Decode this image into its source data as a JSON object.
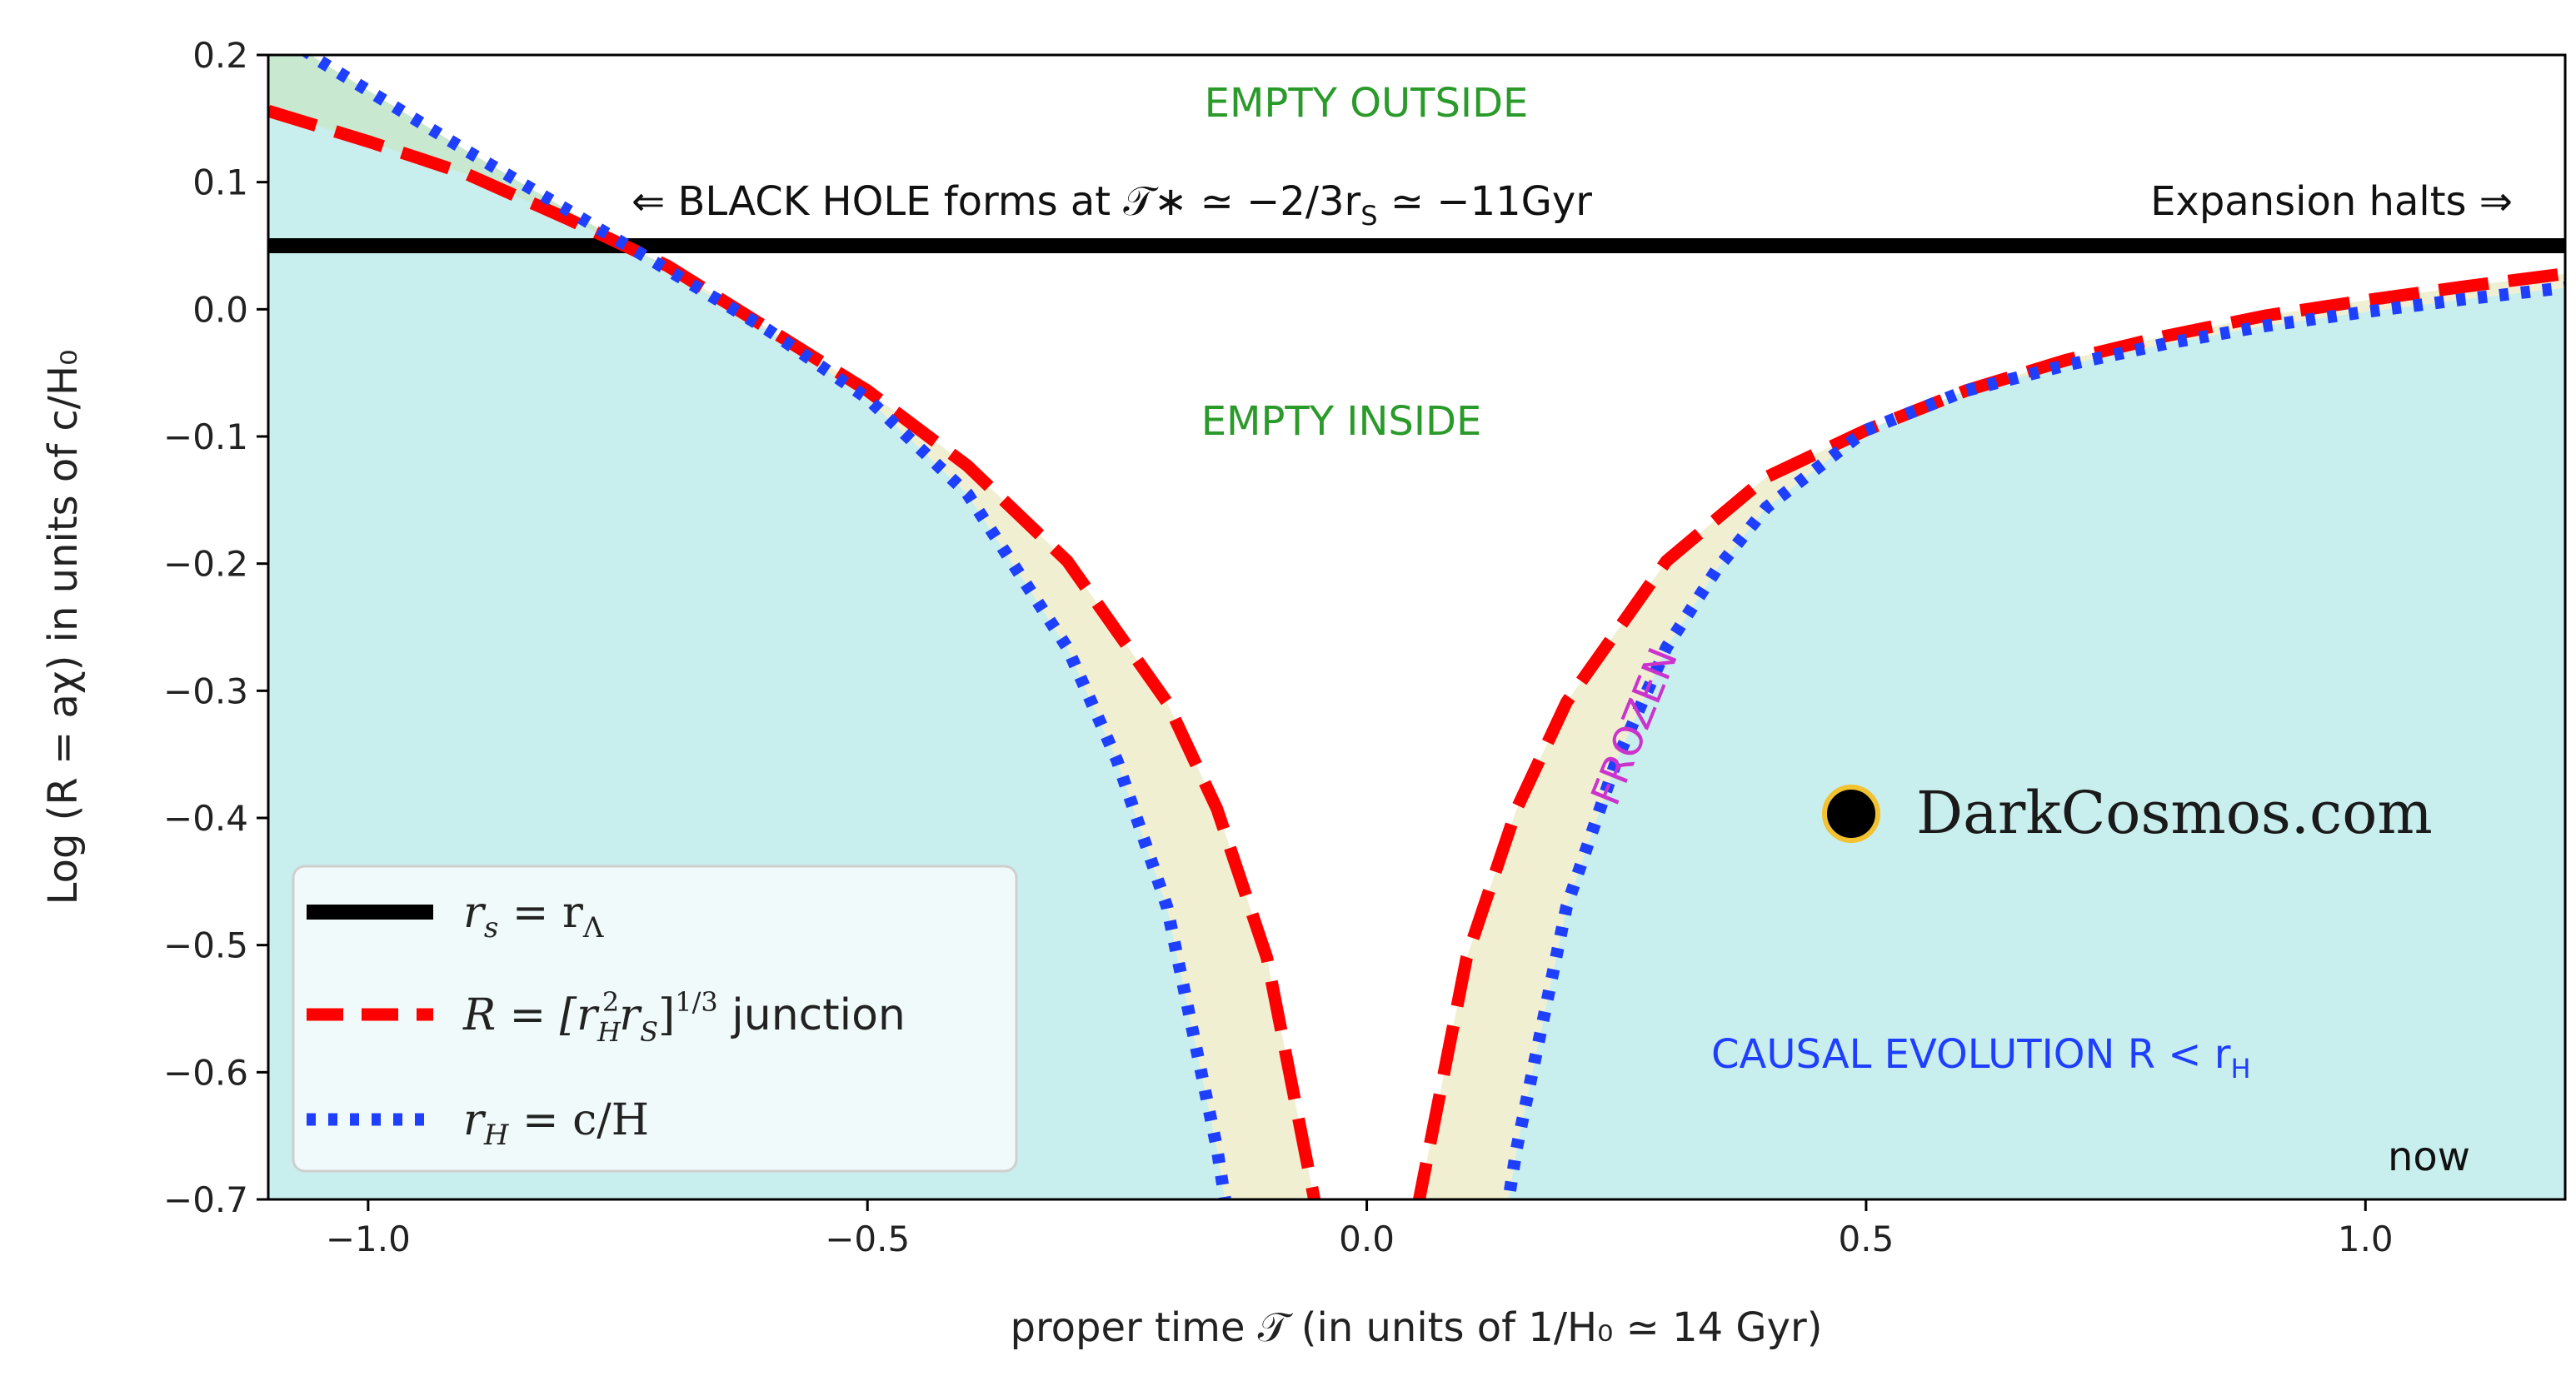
{
  "chart_data": {
    "type": "line",
    "title": "",
    "xlabel": "proper time 𝒯 (in units of 1/H₀ ≃  14 Gyr)",
    "ylabel": "Log (R = aχ)  in units of c/H₀",
    "xlim": [
      -1.1,
      1.2
    ],
    "ylim": [
      -0.7,
      0.2
    ],
    "xticks": [
      -1.0,
      -0.5,
      0.0,
      0.5,
      1.0
    ],
    "xtick_labels": [
      "−1.0",
      "−0.5",
      "0.0",
      "0.5",
      "1.0"
    ],
    "yticks": [
      0.2,
      0.1,
      0.0,
      -0.1,
      -0.2,
      -0.3,
      -0.4,
      -0.5,
      -0.6,
      -0.7
    ],
    "ytick_labels": [
      "0.2",
      "0.1",
      "0.0",
      "−0.1",
      "−0.2",
      "−0.3",
      "−0.4",
      "−0.5",
      "−0.6",
      "−0.7"
    ],
    "grid": false,
    "legend_position": "lower-left",
    "series": [
      {
        "name": "r_s = r_Λ",
        "label_main": "r",
        "label_sub": "s",
        "label_eq": " = r",
        "label_sub2": "Λ",
        "style": "solid",
        "color": "#000000",
        "x": [
          -1.1,
          1.2
        ],
        "y": [
          0.05,
          0.05
        ]
      },
      {
        "name": "R = [r_H^2 r_S]^(1/3) junction",
        "label_text": "R = [r",
        "label_sub": "H",
        "label_sup": "2",
        "label_text2": "r",
        "label_sub2": "S",
        "label_text3": "]",
        "label_sup2": "1/3",
        "label_text4": " junction",
        "style": "dashed",
        "color": "#ff0000",
        "left_branch": {
          "x": [
            -1.1,
            -1.0,
            -0.9,
            -0.8,
            -0.7,
            -0.6,
            -0.5,
            -0.4,
            -0.3,
            -0.2,
            -0.15,
            -0.1,
            -0.05
          ],
          "y": [
            0.156,
            0.132,
            0.106,
            0.071,
            0.034,
            -0.015,
            -0.064,
            -0.123,
            -0.198,
            -0.309,
            -0.393,
            -0.51,
            -0.71
          ]
        },
        "right_branch": {
          "x": [
            0.05,
            0.1,
            0.15,
            0.2,
            0.3,
            0.4,
            0.5,
            0.6,
            0.7,
            0.8,
            0.9,
            1.0,
            1.1,
            1.2
          ],
          "y": [
            -0.71,
            -0.51,
            -0.393,
            -0.309,
            -0.198,
            -0.132,
            -0.095,
            -0.064,
            -0.04,
            -0.021,
            -0.005,
            0.007,
            0.018,
            0.028
          ]
        }
      },
      {
        "name": "r_H = c/H",
        "label_main": "r",
        "label_sub": "H",
        "label_eq": " = c/H",
        "style": "dotted",
        "color": "#1f3fff",
        "left_branch": {
          "x": [
            -1.1,
            -1.05,
            -1.0,
            -0.9,
            -0.8,
            -0.7,
            -0.6,
            -0.5,
            -0.4,
            -0.3,
            -0.25,
            -0.2,
            -0.15,
            -0.14
          ],
          "y": [
            0.225,
            0.196,
            0.172,
            0.124,
            0.078,
            0.031,
            -0.016,
            -0.07,
            -0.145,
            -0.266,
            -0.355,
            -0.47,
            -0.66,
            -0.71
          ]
        },
        "right_branch": {
          "x": [
            0.14,
            0.15,
            0.2,
            0.25,
            0.3,
            0.35,
            0.4,
            0.5,
            0.6,
            0.7,
            0.8,
            0.9,
            1.0,
            1.1,
            1.2
          ],
          "y": [
            -0.71,
            -0.66,
            -0.47,
            -0.355,
            -0.266,
            -0.205,
            -0.156,
            -0.095,
            -0.064,
            -0.044,
            -0.027,
            -0.013,
            -0.002,
            0.008,
            0.017
          ]
        }
      }
    ],
    "annotations": {
      "empty_outside": "EMPTY OUTSIDE",
      "empty_inside": "EMPTY INSIDE",
      "black_hole": "⇐ BLACK HOLE forms at 𝒯∗ ≃ −2/3r",
      "black_hole_sub": "S",
      "black_hole_tail": " ≃ −11Gyr",
      "expansion": "Expansion halts ⇒",
      "frozen": "FROZEN",
      "causal": "CAUSAL EVOLUTION R < r",
      "causal_sub": "H",
      "now": "now",
      "brand": "DarkCosmos.com"
    },
    "colors": {
      "causal_fill": "#c9eeee",
      "frozen_fill": "#f0efd2",
      "outside_fill": "#c8e8d0",
      "empty_outside_text": "#2a9a2a",
      "empty_inside_text": "#2a9a2a",
      "frozen_text": "#cc33cc",
      "causal_text": "#1f3fff",
      "brand_dot": "#000000",
      "brand_ring": "#f2c230"
    }
  }
}
